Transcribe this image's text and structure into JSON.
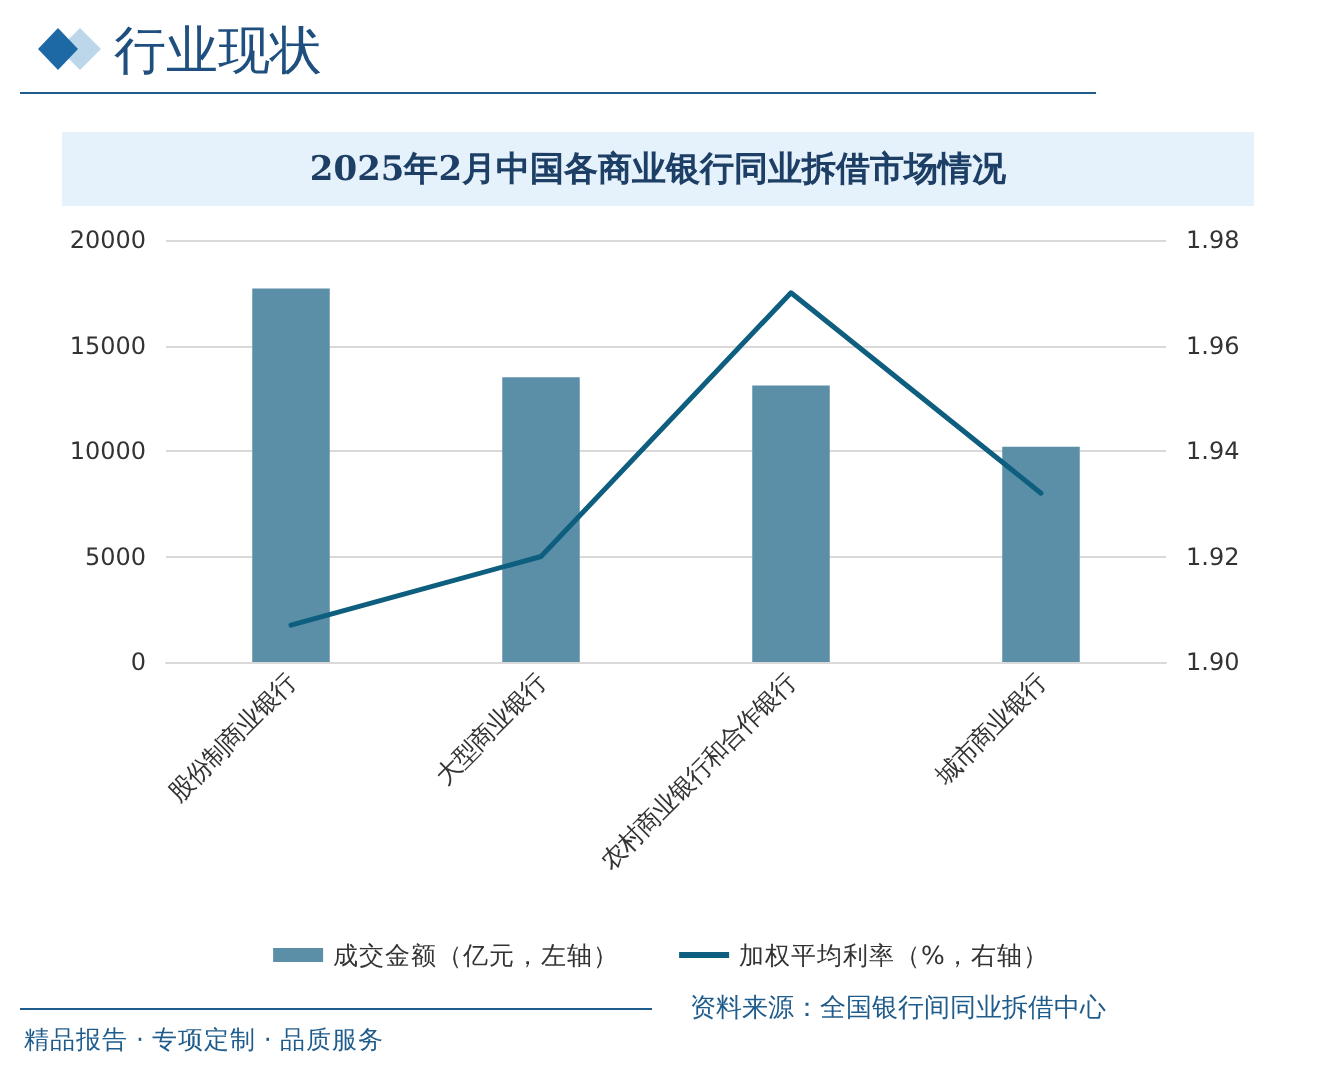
{
  "chart_data": {
    "type": "bar",
    "title": "2025年2月中国各商业银行同业拆借市场情况",
    "annotations": [
      "行业现状",
      "资料来源：全国银行间同业拆借中心",
      "精品报告 · 专项定制 · 品质服务"
    ],
    "categories": [
      "股份制商业银行",
      "大型商业银行",
      "农村商业银行和合作银行",
      "城市商业银行"
    ],
    "series": [
      {
        "name": "成交金额（亿元，左轴）",
        "color": "#5b8fa7",
        "values": [
          17700,
          13500,
          13100,
          10200
        ]
      },
      {
        "name": "加权平均利率（%，右轴）",
        "type": "line",
        "axis": "y2",
        "color": "#0d5e7f",
        "values": [
          1.907,
          1.92,
          1.97,
          1.932
        ]
      }
    ],
    "ylim": [
      0,
      20000
    ],
    "yticks": [
      0,
      5000,
      10000,
      15000,
      20000
    ],
    "y2lim": [
      1.9,
      1.98
    ],
    "y2ticks": [
      {
        "value": 1.9,
        "label": "1.90"
      },
      1.92,
      1.94,
      1.96,
      1.98
    ],
    "grid": "y",
    "legend": "bottom",
    "marker": "none"
  }
}
